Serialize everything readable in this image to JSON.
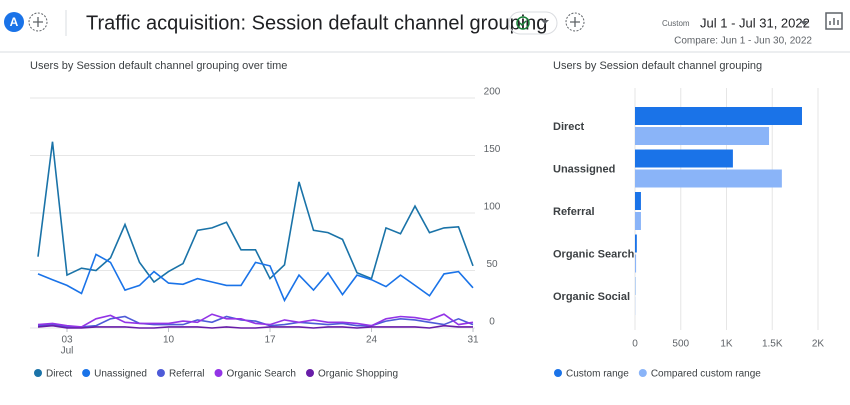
{
  "header": {
    "avatar": "A",
    "title": "Traffic acquisition: Session default channel grouping",
    "date_label": "Custom",
    "date_range": "Jul 1 - Jul 31, 2022",
    "compare": "Compare: Jun 1 - Jun 30, 2022"
  },
  "chart_data": [
    {
      "type": "line",
      "title": "Users by Session default channel grouping over time",
      "x": [
        1,
        2,
        3,
        4,
        5,
        6,
        7,
        8,
        9,
        10,
        11,
        12,
        13,
        14,
        15,
        16,
        17,
        18,
        19,
        20,
        21,
        22,
        23,
        24,
        25,
        26,
        27,
        28,
        29,
        30,
        31
      ],
      "xlim": [
        1,
        31
      ],
      "xticks": [
        {
          "value": 3,
          "label": "03"
        },
        10,
        17,
        24,
        31
      ],
      "x_month_label": "Jul",
      "ylim": [
        0,
        200
      ],
      "yticks": [
        0,
        50,
        100,
        150,
        200
      ],
      "grid": true,
      "y_axis_side": "right",
      "series": [
        {
          "name": "Direct",
          "color": "#1a73a8",
          "values": [
            62,
            162,
            46,
            52,
            50,
            61,
            90,
            57,
            40,
            49,
            56,
            85,
            87,
            92,
            68,
            68,
            43,
            55,
            127,
            85,
            83,
            77,
            48,
            43,
            87,
            82,
            106,
            83,
            87,
            88,
            54
          ]
        },
        {
          "name": "Unassigned",
          "color": "#1a73e8",
          "values": [
            47,
            42,
            37,
            30,
            64,
            57,
            33,
            37,
            49,
            39,
            38,
            43,
            40,
            37,
            37,
            57,
            54,
            24,
            46,
            33,
            48,
            29,
            46,
            42,
            36,
            46,
            37,
            28,
            47,
            49,
            35
          ]
        },
        {
          "name": "Referral",
          "color": "#4e5bd8",
          "values": [
            2,
            3,
            1,
            1,
            2,
            8,
            10,
            4,
            3,
            3,
            3,
            7,
            5,
            10,
            7,
            6,
            2,
            3,
            5,
            4,
            3,
            4,
            2,
            2,
            6,
            8,
            7,
            5,
            3,
            8,
            3
          ]
        },
        {
          "name": "Organic Search",
          "color": "#9334e6",
          "values": [
            3,
            4,
            2,
            1,
            8,
            11,
            5,
            4,
            4,
            4,
            6,
            5,
            12,
            8,
            8,
            4,
            3,
            7,
            5,
            7,
            5,
            5,
            4,
            2,
            8,
            10,
            9,
            7,
            12,
            3,
            5
          ]
        },
        {
          "name": "Organic Shopping",
          "color": "#681da8",
          "values": [
            1,
            2,
            0,
            0,
            1,
            1,
            1,
            0,
            0,
            1,
            1,
            1,
            0,
            1,
            0,
            0,
            1,
            1,
            1,
            0,
            1,
            1,
            0,
            1,
            1,
            1,
            1,
            0,
            2,
            1,
            1
          ]
        }
      ]
    },
    {
      "type": "bar",
      "orientation": "horizontal",
      "title": "Users by Session default channel grouping",
      "categories": [
        "Direct",
        "Unassigned",
        "Referral",
        "Organic Search",
        "Organic Social"
      ],
      "xlim": [
        0,
        2000
      ],
      "xticks": [
        0,
        500,
        {
          "value": 1000,
          "label": "1K"
        },
        {
          "value": 1500,
          "label": "1.5K"
        },
        {
          "value": 2000,
          "label": "2K"
        }
      ],
      "grid": true,
      "series": [
        {
          "name": "Custom range",
          "color": "#1a73e8",
          "values": [
            1825,
            1070,
            65,
            20,
            3
          ]
        },
        {
          "name": "Compared custom range",
          "color": "#8ab4f8",
          "values": [
            1465,
            1605,
            65,
            12,
            2
          ]
        }
      ]
    }
  ]
}
